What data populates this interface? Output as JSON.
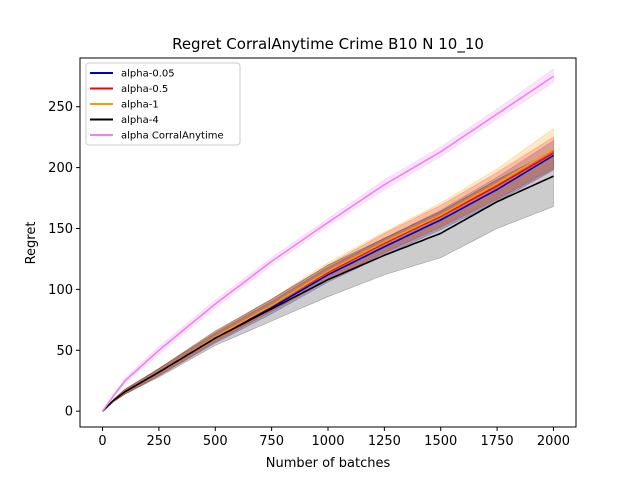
{
  "chart_data": {
    "type": "line",
    "title": "Regret CorralAnytime Crime B10 N 10_10",
    "xlabel": "Number of batches",
    "ylabel": "Regret",
    "xlim": [
      -100,
      2100
    ],
    "ylim": [
      -13,
      290
    ],
    "xticks": [
      0,
      250,
      500,
      750,
      1000,
      1250,
      1500,
      1750,
      2000
    ],
    "yticks": [
      0,
      50,
      100,
      150,
      200,
      250
    ],
    "legend_position": "top-left",
    "x": [
      0,
      50,
      100,
      250,
      500,
      750,
      1000,
      1250,
      1500,
      1750,
      2000
    ],
    "series": [
      {
        "name": "alpha-0.05",
        "color": "#0000cc",
        "values": [
          0,
          9,
          16,
          32,
          60,
          85,
          112,
          135,
          157,
          182,
          210
        ],
        "lower": [
          0,
          8,
          14,
          29,
          56,
          80,
          106,
          128,
          149,
          172,
          198
        ],
        "upper": [
          0,
          10,
          18,
          35,
          64,
          90,
          118,
          142,
          165,
          192,
          222
        ]
      },
      {
        "name": "alpha-0.5",
        "color": "#ff0000",
        "values": [
          0,
          9,
          16,
          32,
          61,
          87,
          114,
          138,
          160,
          185,
          212
        ],
        "lower": [
          0,
          8,
          14,
          29,
          57,
          82,
          108,
          130,
          151,
          174,
          199
        ],
        "upper": [
          0,
          10,
          18,
          35,
          65,
          92,
          120,
          146,
          169,
          196,
          225
        ]
      },
      {
        "name": "alpha-1",
        "color": "#ff9900",
        "values": [
          0,
          9,
          16,
          32,
          61,
          87,
          115,
          139,
          161,
          187,
          215
        ],
        "lower": [
          0,
          8,
          14,
          29,
          57,
          82,
          108,
          131,
          151,
          175,
          200
        ],
        "upper": [
          0,
          10,
          18,
          35,
          65,
          92,
          122,
          147,
          171,
          199,
          232
        ]
      },
      {
        "name": "alpha-4",
        "color": "#000000",
        "values": [
          0,
          9,
          16,
          32,
          60,
          84,
          108,
          128,
          146,
          172,
          193
        ],
        "lower": [
          0,
          8,
          14,
          28,
          54,
          74,
          94,
          112,
          126,
          150,
          168
        ],
        "upper": [
          0,
          10,
          18,
          35,
          66,
          92,
          120,
          142,
          164,
          190,
          214
        ]
      },
      {
        "name": "alpha CorralAnytime",
        "color": "#ee82ee",
        "values": [
          0,
          13,
          25,
          50,
          88,
          123,
          155,
          186,
          213,
          244,
          275
        ],
        "lower": [
          0,
          12,
          23,
          47,
          85,
          120,
          152,
          182,
          209,
          240,
          270
        ],
        "upper": [
          0,
          14,
          27,
          53,
          91,
          126,
          158,
          190,
          217,
          248,
          281
        ]
      }
    ]
  }
}
